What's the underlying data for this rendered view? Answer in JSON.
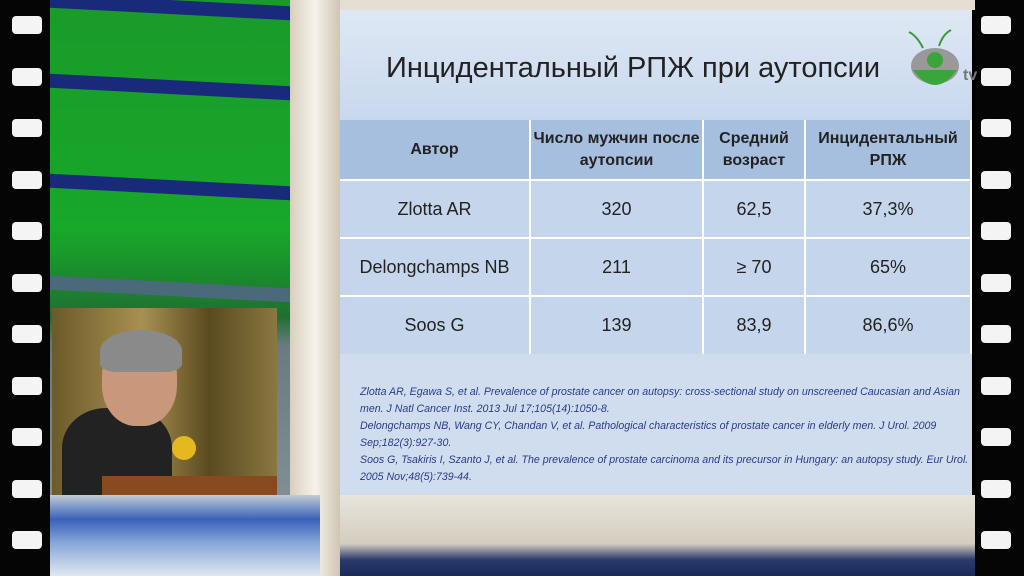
{
  "slide": {
    "title": "Инцидентальный РПЖ при аутопсии",
    "logo_text": "uro tv",
    "table": {
      "headers": [
        "Автор",
        "Число мужчин после аутопсии",
        "Средний возраст",
        "Инцидентальный РПЖ"
      ],
      "rows": [
        [
          "Zlotta AR",
          "320",
          "62,5",
          "37,3%"
        ],
        [
          "Delongchamps NB",
          "211",
          "≥ 70",
          "65%"
        ],
        [
          "Soos G",
          "139",
          "83,9",
          "86,6%"
        ]
      ]
    },
    "references": [
      "Zlotta AR, Egawa S, et al. Prevalence of prostate cancer on autopsy: cross-sectional study on unscreened Caucasian and Asian men. J Natl Cancer Inst. 2013 Jul 17;105(14):1050-8.",
      "Delongchamps NB, Wang CY, Chandan V, et al. Pathological characteristics of prostate cancer in elderly men. J Urol. 2009 Sep;182(3):927-30.",
      "Soos G, Tsakiris I, Szanto J, et al. The prevalence of prostate carcinoma and its precursor in Hungary: an autopsy study. Eur Urol. 2005 Nov;48(5):739-44."
    ]
  },
  "colors": {
    "header_fill": "#a7bfde",
    "cell_fill": "#c5d6ec",
    "studio_green": "#18a82a",
    "reference_text": "#2b3a8a"
  }
}
